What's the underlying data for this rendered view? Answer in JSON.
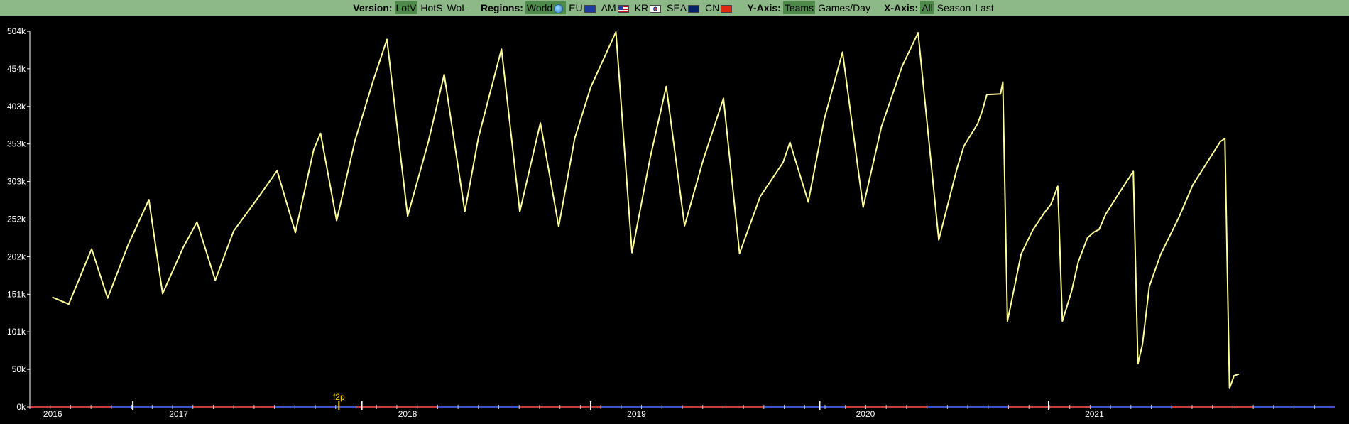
{
  "toolbar": {
    "version": {
      "label": "Version:",
      "options": [
        "LotV",
        "HotS",
        "WoL"
      ],
      "selected": "LotV"
    },
    "regions": {
      "label": "Regions:",
      "options": [
        {
          "name": "World",
          "flag": "world-icon"
        },
        {
          "name": "EU",
          "flag": "eu-flag-icon"
        },
        {
          "name": "AM",
          "flag": "us-flag-icon"
        },
        {
          "name": "KR",
          "flag": "kr-flag-icon"
        },
        {
          "name": "SEA",
          "flag": "au-flag-icon"
        },
        {
          "name": "CN",
          "flag": "cn-flag-icon"
        }
      ],
      "selected": "World"
    },
    "y_axis": {
      "label": "Y-Axis:",
      "options": [
        "Teams",
        "Games/Day"
      ],
      "selected": "Teams"
    },
    "x_axis": {
      "label": "X-Axis:",
      "options": [
        "All",
        "Season",
        "Last"
      ],
      "selected": "All"
    }
  },
  "chart_data": {
    "type": "line",
    "line_color": "#ffff99",
    "background": "#000000",
    "ylim": [
      0,
      504
    ],
    "y_unit": "k",
    "y_ticks": [
      "0k",
      "50k",
      "101k",
      "151k",
      "202k",
      "252k",
      "303k",
      "353k",
      "403k",
      "454k",
      "504k"
    ],
    "x_range": [
      2015.9,
      2021.6
    ],
    "x_ticks": [
      {
        "label": "2016",
        "x": 2016.0
      },
      {
        "label": "2017",
        "x": 2016.55
      },
      {
        "label": "2018",
        "x": 2017.55
      },
      {
        "label": "2019",
        "x": 2018.55
      },
      {
        "label": "2020",
        "x": 2019.55
      },
      {
        "label": "2021",
        "x": 2020.55
      }
    ],
    "annotations": [
      {
        "text": "f2p",
        "x": 2017.25
      }
    ],
    "series": [
      {
        "points": [
          [
            2016.0,
            147
          ],
          [
            2016.07,
            138
          ],
          [
            2016.17,
            212
          ],
          [
            2016.24,
            146
          ],
          [
            2016.33,
            218
          ],
          [
            2016.42,
            278
          ],
          [
            2016.48,
            152
          ],
          [
            2016.57,
            214
          ],
          [
            2016.63,
            248
          ],
          [
            2016.71,
            170
          ],
          [
            2016.79,
            236
          ],
          [
            2016.9,
            282
          ],
          [
            2016.98,
            317
          ],
          [
            2017.06,
            234
          ],
          [
            2017.14,
            345
          ],
          [
            2017.17,
            367
          ],
          [
            2017.24,
            250
          ],
          [
            2017.32,
            357
          ],
          [
            2017.4,
            438
          ],
          [
            2017.46,
            493
          ],
          [
            2017.55,
            256
          ],
          [
            2017.64,
            355
          ],
          [
            2017.71,
            446
          ],
          [
            2017.8,
            262
          ],
          [
            2017.86,
            362
          ],
          [
            2017.96,
            480
          ],
          [
            2018.04,
            262
          ],
          [
            2018.13,
            381
          ],
          [
            2018.21,
            242
          ],
          [
            2018.28,
            360
          ],
          [
            2018.35,
            429
          ],
          [
            2018.46,
            503
          ],
          [
            2018.53,
            207
          ],
          [
            2018.61,
            335
          ],
          [
            2018.68,
            430
          ],
          [
            2018.76,
            243
          ],
          [
            2018.84,
            330
          ],
          [
            2018.93,
            414
          ],
          [
            2019.0,
            206
          ],
          [
            2019.09,
            282
          ],
          [
            2019.19,
            328
          ],
          [
            2019.22,
            355
          ],
          [
            2019.3,
            275
          ],
          [
            2019.37,
            386
          ],
          [
            2019.45,
            476
          ],
          [
            2019.54,
            268
          ],
          [
            2019.62,
            376
          ],
          [
            2019.71,
            457
          ],
          [
            2019.78,
            502
          ],
          [
            2019.87,
            224
          ],
          [
            2019.95,
            320
          ],
          [
            2019.98,
            350
          ],
          [
            2020.04,
            380
          ],
          [
            2020.06,
            397
          ],
          [
            2020.08,
            419
          ],
          [
            2020.14,
            420
          ],
          [
            2020.15,
            436
          ],
          [
            2020.17,
            115
          ],
          [
            2020.2,
            160
          ],
          [
            2020.23,
            205
          ],
          [
            2020.28,
            237
          ],
          [
            2020.33,
            260
          ],
          [
            2020.36,
            272
          ],
          [
            2020.39,
            296
          ],
          [
            2020.41,
            115
          ],
          [
            2020.45,
            155
          ],
          [
            2020.48,
            195
          ],
          [
            2020.52,
            227
          ],
          [
            2020.55,
            235
          ],
          [
            2020.57,
            238
          ],
          [
            2020.6,
            259
          ],
          [
            2020.66,
            288
          ],
          [
            2020.72,
            316
          ],
          [
            2020.74,
            58
          ],
          [
            2020.76,
            84
          ],
          [
            2020.79,
            162
          ],
          [
            2020.84,
            205
          ],
          [
            2020.92,
            255
          ],
          [
            2020.98,
            298
          ],
          [
            2021.1,
            356
          ],
          [
            2021.12,
            360
          ],
          [
            2021.14,
            25
          ],
          [
            2021.16,
            42
          ],
          [
            2021.18,
            44
          ]
        ]
      }
    ]
  }
}
